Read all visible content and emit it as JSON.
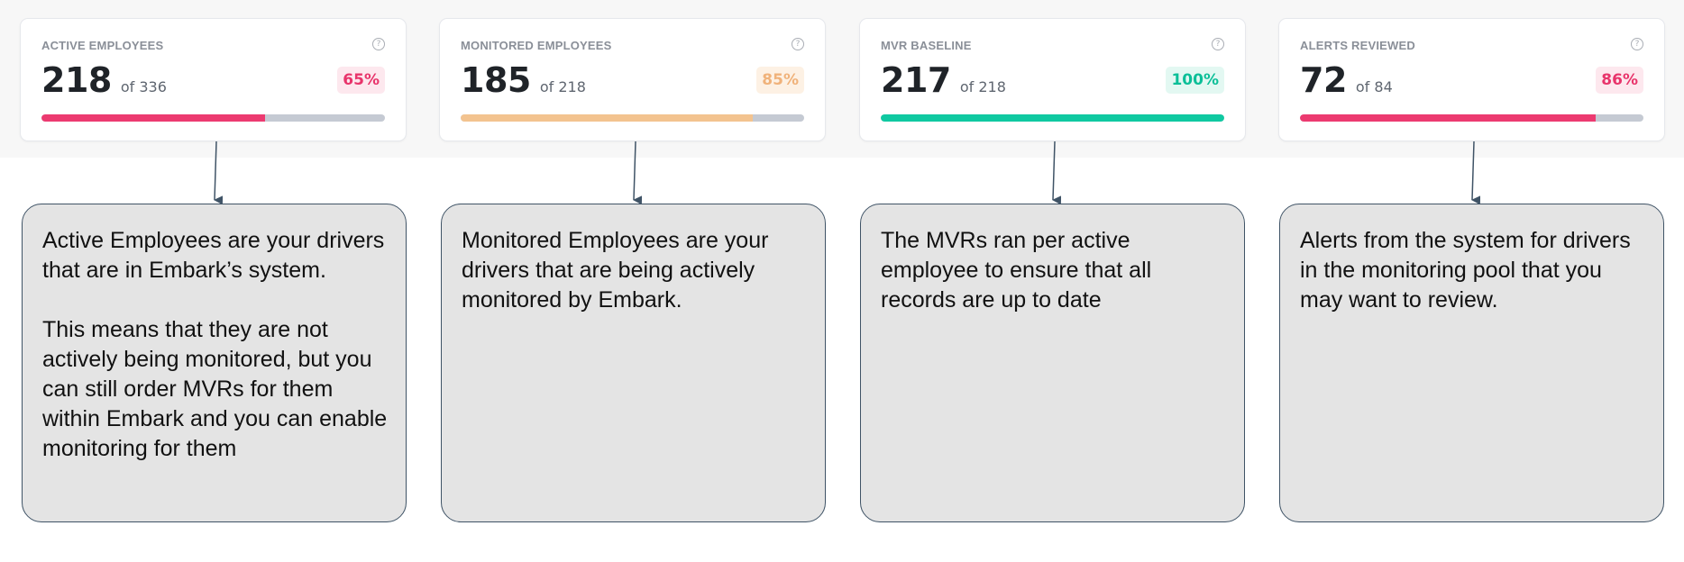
{
  "cards": [
    {
      "title": "ACTIVE EMPLOYEES",
      "help": "?",
      "value": "218",
      "of": "of 336",
      "percent_label": "65%",
      "progress": 0.65,
      "fill_color": "#ec3a70",
      "badge_bg": "#fde8ee",
      "badge_color": "#e8346b"
    },
    {
      "title": "MONITORED EMPLOYEES",
      "help": "?",
      "value": "185",
      "of": "of 218",
      "percent_label": "85%",
      "progress": 0.85,
      "fill_color": "#f3c38f",
      "badge_bg": "#fdf1e4",
      "badge_color": "#f0b27a"
    },
    {
      "title": "MVR BASELINE",
      "help": "?",
      "value": "217",
      "of": "of 218",
      "percent_label": "100%",
      "progress": 1.0,
      "fill_color": "#0fc9a1",
      "badge_bg": "#e3f8f2",
      "badge_color": "#0bbf98"
    },
    {
      "title": "ALERTS REVIEWED",
      "help": "?",
      "value": "72",
      "of": "of 84",
      "percent_label": "86%",
      "progress": 0.86,
      "fill_color": "#ec3a70",
      "badge_bg": "#fde8ee",
      "badge_color": "#e8346b"
    }
  ],
  "callouts": [
    {
      "paragraphs": [
        "Active Employees are your drivers that are in Embark’s system.",
        "This means that they are not actively being monitored, but you can still order MVRs for them within Embark and you can enable monitoring for them"
      ]
    },
    {
      "paragraphs": [
        "Monitored Employees are your drivers that are being actively monitored by Embark."
      ]
    },
    {
      "paragraphs": [
        "The MVRs ran per active employee to ensure that all records are up to date"
      ]
    },
    {
      "paragraphs": [
        "Alerts from the system for drivers in the monitoring pool that you may want to review."
      ]
    }
  ]
}
